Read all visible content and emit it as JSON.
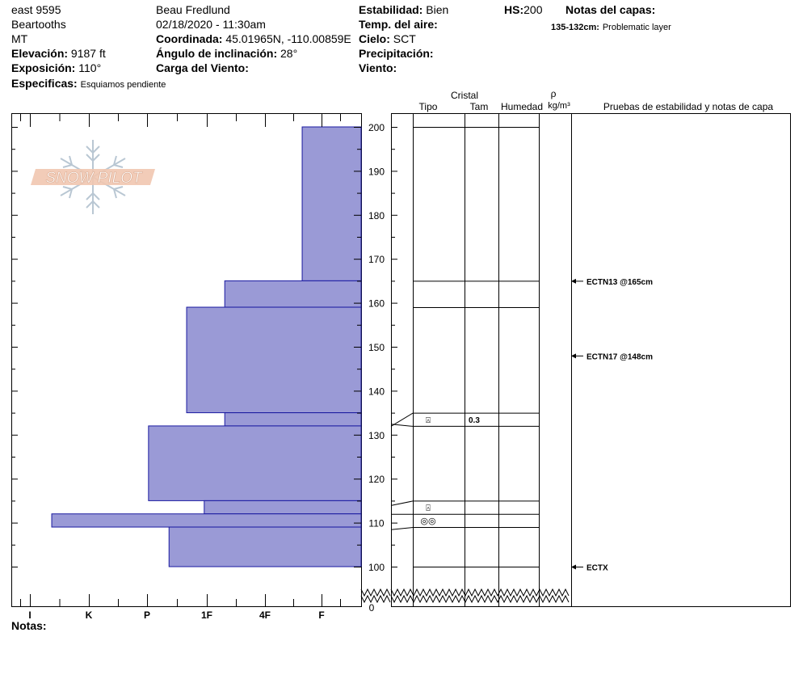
{
  "header": {
    "site": "east 9595",
    "range": "Beartooths",
    "state": "MT",
    "elevation_label": "Elevación:",
    "elevation_value": "9187 ft",
    "aspect_label": "Exposición:",
    "aspect_value": "110°",
    "specifics_label": "Especificas:",
    "specifics_value": "Esquiamos pendiente",
    "observer": "Beau  Fredlund",
    "datetime": "02/18/2020 - 11:30am",
    "coord_label": "Coordinada:",
    "coord_value": "45.01965N, -110.00859E",
    "slope_label": "Ángulo de inclinación:",
    "slope_value": "28°",
    "wind_load_label": "Carga del Viento:",
    "stability_label": "Estabilidad:",
    "stability_value": "Bien",
    "air_temp_label": "Temp. del aire:",
    "sky_label": "Cielo:",
    "sky_value": "SCT",
    "precip_label": "Precipitación:",
    "wind_label": "Viento:",
    "hs_label": "HS:",
    "hs_value": "200",
    "layer_notes_label": "Notas del capas:",
    "layer_note_range": "135-132cm:",
    "layer_note_text": "Problematic layer"
  },
  "logo": {
    "text": "SNOW PILOT"
  },
  "columns": {
    "crystal": "Cristal",
    "type": "Tipo",
    "size": "Tam",
    "moisture": "Humedad",
    "rho": "ρ",
    "density_unit": "kg/m³",
    "tests": "Pruebas de estabilidad y notas de capa"
  },
  "notes_label": "Notas:",
  "chart_data": {
    "type": "bar",
    "orientation": "horizontal",
    "title": "",
    "xlabel": "",
    "ylabel": "",
    "hardness_ticks": [
      "I",
      "K",
      "P",
      "1F",
      "4F",
      "F"
    ],
    "depth_ticks": [
      100,
      110,
      120,
      130,
      140,
      150,
      160,
      170,
      180,
      190,
      200
    ],
    "depth_zero_label": "0",
    "ylim": [
      100,
      200
    ],
    "colors": {
      "bar_fill": "#9a9ad6",
      "bar_stroke": "#1a1aa0"
    },
    "hardness_layers": [
      {
        "top": 200,
        "bottom": 165,
        "hardness_index": 0.33
      },
      {
        "top": 165,
        "bottom": 159,
        "hardness_index": 1.65
      },
      {
        "top": 159,
        "bottom": 135,
        "hardness_index": 2.3
      },
      {
        "top": 135,
        "bottom": 132,
        "hardness_index": 1.65
      },
      {
        "top": 132,
        "bottom": 115,
        "hardness_index": 2.95
      },
      {
        "top": 115,
        "bottom": 112,
        "hardness_index": 2.0
      },
      {
        "top": 112,
        "bottom": 109,
        "hardness_index": 4.6
      },
      {
        "top": 109,
        "bottom": 100,
        "hardness_index": 2.6
      }
    ],
    "layer_boundaries": [
      200,
      165,
      159,
      135,
      132,
      115,
      112,
      109,
      100
    ],
    "crystal_rows": [
      {
        "depth": 133.5,
        "symbol": "⍓",
        "size": "0.3"
      },
      {
        "depth": 113.5,
        "symbol": "⍓",
        "size": ""
      },
      {
        "depth": 110.5,
        "symbol": "◎◎",
        "size": ""
      }
    ],
    "stability_tests": [
      {
        "depth": 165,
        "label": "ECTN13 @165cm"
      },
      {
        "depth": 148,
        "label": "ECTN17 @148cm"
      },
      {
        "depth": 100,
        "label": "ECTX"
      }
    ]
  }
}
